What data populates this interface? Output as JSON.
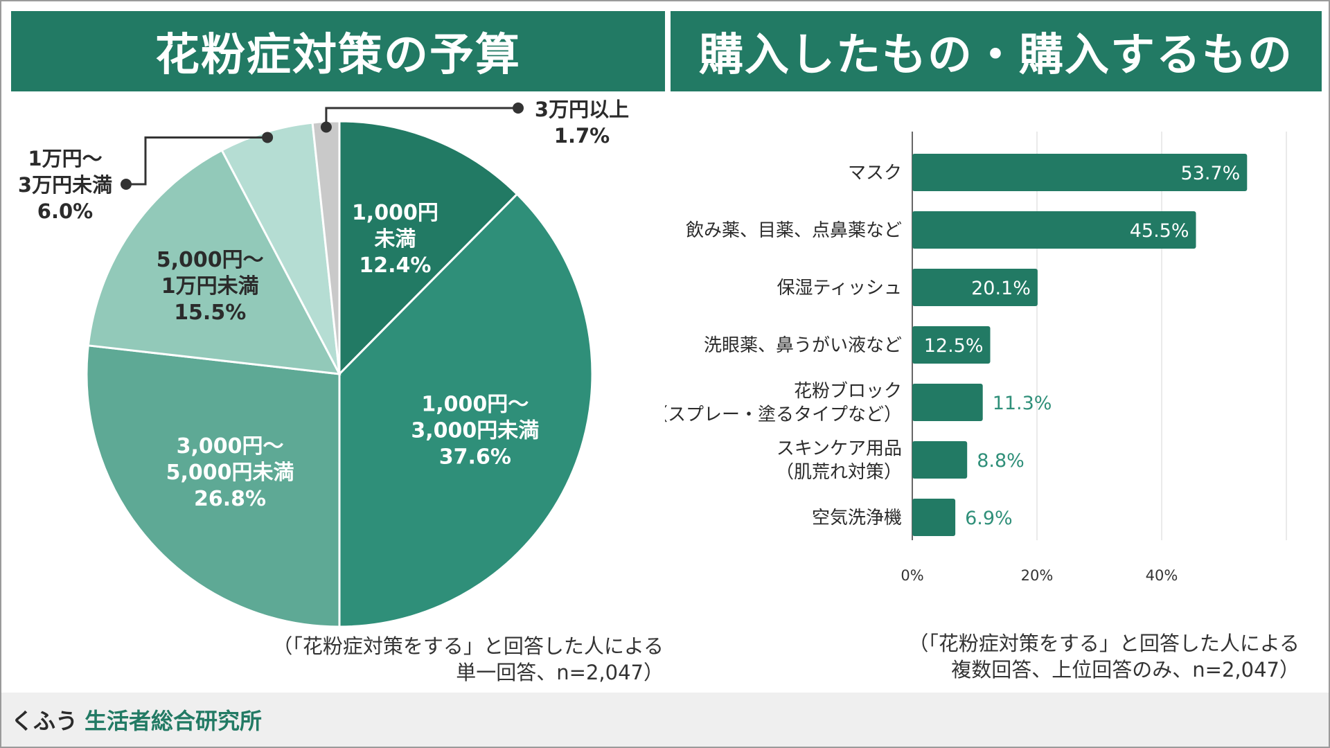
{
  "left_panel": {
    "title": "花粉症対策の予算",
    "note_line1": "（「花粉症対策をする」と回答した人による",
    "note_line2": "単一回答、n=2,047）"
  },
  "right_panel": {
    "title": "購入したもの・購入するもの",
    "note_line1": "（「花粉症対策をする」と回答した人による",
    "note_line2": "複数回答、上位回答のみ、n=2,047）"
  },
  "footer": {
    "brand1": "くふう",
    "brand2": "生活者総合研究所"
  },
  "colors": {
    "header_bg": "#227a64",
    "bar": "#227a64",
    "slice_1": "#227a64",
    "slice_2": "#2f8f79",
    "slice_3": "#5ea995",
    "slice_4": "#92c9b9",
    "slice_5": "#b5ddd3",
    "slice_6": "#c9c9c9"
  },
  "chart_data": [
    {
      "type": "pie",
      "title": "花粉症対策の予算",
      "unit": "%",
      "slices": [
        {
          "lines": [
            "1,000円",
            "未満",
            "12.4%"
          ],
          "value": 12.4,
          "inside": true
        },
        {
          "lines": [
            "1,000円〜",
            "3,000円未満",
            "37.6%"
          ],
          "value": 37.6,
          "inside": true
        },
        {
          "lines": [
            "3,000円〜",
            "5,000円未満",
            "26.8%"
          ],
          "value": 26.8,
          "inside": true
        },
        {
          "lines": [
            "5,000円〜",
            "1万円未満",
            "15.5%"
          ],
          "value": 15.5,
          "inside": true
        },
        {
          "lines": [
            "1万円〜",
            "3万円未満",
            "6.0%"
          ],
          "value": 6.0,
          "inside": false
        },
        {
          "lines": [
            "3万円以上",
            "1.7%"
          ],
          "value": 1.7,
          "inside": false
        }
      ]
    },
    {
      "type": "bar",
      "orientation": "horizontal",
      "title": "購入したもの・購入するもの",
      "categories": [
        [
          "マスク"
        ],
        [
          "飲み薬、目薬、点鼻薬など"
        ],
        [
          "保湿ティッシュ"
        ],
        [
          "洗眼薬、鼻うがい液など"
        ],
        [
          "花粉ブロック",
          "（スプレー・塗るタイプなど）"
        ],
        [
          "スキンケア用品",
          "（肌荒れ対策）"
        ],
        [
          "空気洗浄機"
        ]
      ],
      "values": [
        53.7,
        45.5,
        20.1,
        12.5,
        11.3,
        8.8,
        6.9
      ],
      "value_labels": [
        "53.7%",
        "45.5%",
        "20.1%",
        "12.5%",
        "11.3%",
        "8.8%",
        "6.9%"
      ],
      "xlim": [
        0,
        60
      ],
      "xticks": [
        0,
        20,
        40
      ],
      "xtick_labels": [
        "0%",
        "20%",
        "40%"
      ],
      "grid": true
    }
  ]
}
